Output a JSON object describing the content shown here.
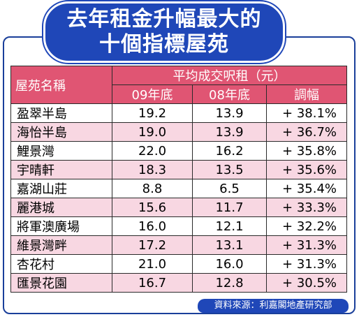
{
  "title_lines": [
    "去年租金升幅最大的",
    "十個指標屋苑"
  ],
  "colors": {
    "accent_blue": "#1f47b8",
    "header_pink": "#e05573",
    "row_shade": "#f8d7e2"
  },
  "table": {
    "col_name": "屋苑名稱",
    "col_group": "平均成交呎租（元）",
    "col_09": "09年底",
    "col_08": "08年底",
    "col_change": "調幅"
  },
  "source": "資料來源：利嘉閣地產研究部",
  "chart_data": {
    "type": "table",
    "title": "去年租金升幅最大的十個指標屋苑",
    "columns": [
      "屋苑名稱",
      "09年底",
      "08年底",
      "調幅"
    ],
    "rows": [
      {
        "name": "盈翠半島",
        "y09": "19.2",
        "y08": "13.9",
        "change": "+ 38.1%"
      },
      {
        "name": "海怡半島",
        "y09": "19.0",
        "y08": "13.9",
        "change": "+ 36.7%"
      },
      {
        "name": "鯉景灣",
        "y09": "22.0",
        "y08": "16.2",
        "change": "+ 35.8%"
      },
      {
        "name": "宇晴軒",
        "y09": "18.3",
        "y08": "13.5",
        "change": "+ 35.6%"
      },
      {
        "name": "嘉湖山莊",
        "y09": "8.8",
        "y08": "6.5",
        "change": "+ 35.4%"
      },
      {
        "name": "麗港城",
        "y09": "15.6",
        "y08": "11.7",
        "change": "+ 33.3%"
      },
      {
        "name": "將軍澳廣場",
        "y09": "16.0",
        "y08": "12.1",
        "change": "+ 32.2%"
      },
      {
        "name": "維景灣畔",
        "y09": "17.2",
        "y08": "13.1",
        "change": "+ 31.3%"
      },
      {
        "name": "杏花村",
        "y09": "21.0",
        "y08": "16.0",
        "change": "+ 31.3%"
      },
      {
        "name": "匯景花園",
        "y09": "16.7",
        "y08": "12.8",
        "change": "+ 30.5%"
      }
    ]
  }
}
